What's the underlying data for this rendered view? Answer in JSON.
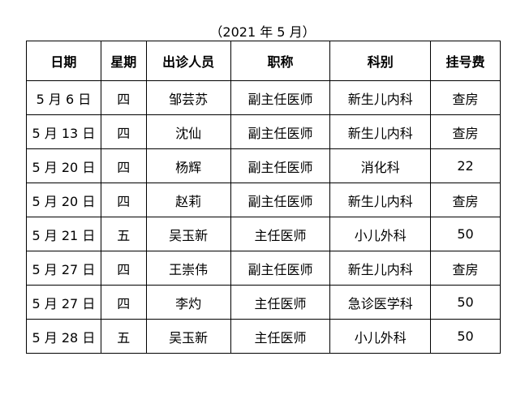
{
  "caption": "（2021 年 5 月）",
  "headers": [
    "日期",
    "星期",
    "出诊人员",
    "职称",
    "科别",
    "挂号费"
  ],
  "rows": [
    [
      "5 月 6 日",
      "四",
      "邹芸苏",
      "副主任医师",
      "新生儿内科",
      "查房"
    ],
    [
      "5 月 13 日",
      "四",
      "沈仙",
      "副主任医师",
      "新生儿内科",
      "查房"
    ],
    [
      "5 月 20 日",
      "四",
      "杨辉",
      "副主任医师",
      "消化科",
      "22"
    ],
    [
      "5 月 20 日",
      "四",
      "赵莉",
      "副主任医师",
      "新生儿内科",
      "查房"
    ],
    [
      "5 月 21 日",
      "五",
      "吴玉新",
      "主任医师",
      "小儿外科",
      "50"
    ],
    [
      "5 月 27 日",
      "四",
      "王崇伟",
      "副主任医师",
      "新生儿内科",
      "查房"
    ],
    [
      "5 月 27 日",
      "四",
      "李灼",
      "主任医师",
      "急诊医学科",
      "50"
    ],
    [
      "5 月 28 日",
      "五",
      "吴玉新",
      "主任医师",
      "小儿外科",
      "50"
    ]
  ]
}
